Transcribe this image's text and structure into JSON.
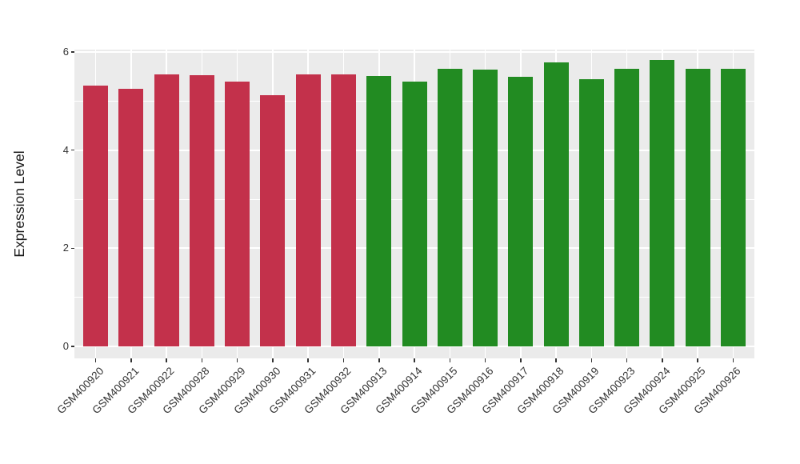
{
  "chart_data": {
    "type": "bar",
    "title": "",
    "xlabel": "",
    "ylabel": "Expression Level",
    "ylim": [
      0,
      6
    ],
    "major_yticks": [
      0,
      2,
      4,
      6
    ],
    "minor_yticks": [
      1,
      3,
      5
    ],
    "grid": "white on gray panel, majors at even values, minors at odd values, vertical line at each category center",
    "legend_position": "none",
    "categories": [
      "GSM400920",
      "GSM400921",
      "GSM400922",
      "GSM400928",
      "GSM400929",
      "GSM400930",
      "GSM400931",
      "GSM400932",
      "GSM400913",
      "GSM400914",
      "GSM400915",
      "GSM400916",
      "GSM400917",
      "GSM400918",
      "GSM400919",
      "GSM400923",
      "GSM400924",
      "GSM400925",
      "GSM400926"
    ],
    "values": [
      5.32,
      5.25,
      5.55,
      5.52,
      5.4,
      5.12,
      5.54,
      5.54,
      5.51,
      5.4,
      5.66,
      5.64,
      5.5,
      5.79,
      5.44,
      5.65,
      5.83,
      5.66,
      5.66
    ],
    "groups": [
      "red",
      "red",
      "red",
      "red",
      "red",
      "red",
      "red",
      "red",
      "green",
      "green",
      "green",
      "green",
      "green",
      "green",
      "green",
      "green",
      "green",
      "green",
      "green"
    ],
    "group_colors": {
      "red": "#C3314B",
      "green": "#228B22"
    },
    "colors": {
      "panel_background": "#EBEBEB",
      "grid": "#FFFFFF",
      "axis_text": "#333333",
      "axis_title": "#1A1A1A",
      "tick_marks": "#333333",
      "page_background": "#FFFFFF"
    }
  }
}
